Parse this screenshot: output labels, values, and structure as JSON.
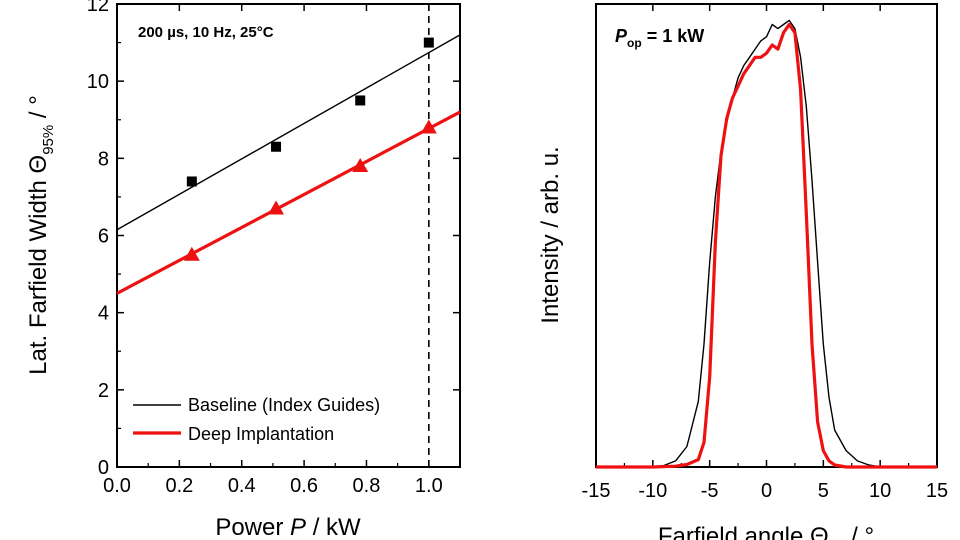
{
  "chart_data": [
    {
      "type": "scatter",
      "annotation": "200 µs, 10 Hz, 25°C",
      "xlabel": {
        "prefix": "Power ",
        "italic": "P",
        "suffix": " / kW"
      },
      "ylabel": {
        "prefix": "Lat. Farfield Width Θ",
        "sub": "95%",
        "suffix": " / °"
      },
      "xlim": [
        0,
        1.1
      ],
      "ylim": [
        0,
        12
      ],
      "x_ticks": [
        0.0,
        0.2,
        0.4,
        0.6,
        0.8,
        1.0
      ],
      "x_tick_labels": [
        "0.0",
        "0.2",
        "0.4",
        "0.6",
        "0.8",
        "1.0"
      ],
      "y_ticks": [
        0,
        2,
        4,
        6,
        8,
        10,
        12
      ],
      "y_tick_labels": [
        "0",
        "2",
        "4",
        "6",
        "8",
        "10",
        "12"
      ],
      "reference_line_x": 1.0,
      "series": [
        {
          "name": "Baseline (Index Guides)",
          "color": "#000000",
          "marker": "square",
          "x": [
            0.24,
            0.51,
            0.78,
            1.0
          ],
          "y": [
            7.4,
            8.3,
            9.5,
            11.0
          ],
          "fit": {
            "x": [
              0.0,
              1.1
            ],
            "y": [
              6.15,
              11.2
            ]
          }
        },
        {
          "name": "Deep Implantation",
          "color": "#ee1111",
          "marker": "triangle",
          "x": [
            0.24,
            0.51,
            0.78,
            1.0
          ],
          "y": [
            5.5,
            6.7,
            7.8,
            8.8
          ],
          "fit": {
            "x": [
              0.0,
              1.1
            ],
            "y": [
              4.5,
              9.2
            ]
          }
        }
      ]
    },
    {
      "type": "line",
      "annotation": {
        "italic": "P",
        "sub": "op",
        "suffix": " = 1 kW"
      },
      "xlabel": {
        "prefix": "Farfield angle Θ",
        "sub": "lat",
        "suffix": " / °"
      },
      "ylabel": "Intensity / arb. u.",
      "xlim": [
        -15,
        15
      ],
      "ylim": [
        0,
        1.13
      ],
      "x_ticks": [
        -15,
        -10,
        -5,
        0,
        5,
        10,
        15
      ],
      "x_tick_labels": [
        "-15",
        "-10",
        "-5",
        "0",
        "5",
        "10",
        "15"
      ],
      "series": [
        {
          "name": "Baseline (Index Guides)",
          "color": "#000000",
          "points": [
            [
              -15,
              0.0
            ],
            [
              -10,
              0.0
            ],
            [
              -9,
              0.004
            ],
            [
              -8,
              0.015
            ],
            [
              -7,
              0.05
            ],
            [
              -6,
              0.16
            ],
            [
              -5.5,
              0.3
            ],
            [
              -5,
              0.5
            ],
            [
              -4.5,
              0.66
            ],
            [
              -4,
              0.77
            ],
            [
              -3.5,
              0.84
            ],
            [
              -3,
              0.9
            ],
            [
              -2.5,
              0.95
            ],
            [
              -2,
              0.98
            ],
            [
              -1.5,
              1.0
            ],
            [
              -1,
              1.02
            ],
            [
              -0.5,
              1.04
            ],
            [
              0,
              1.05
            ],
            [
              0.5,
              1.08
            ],
            [
              1,
              1.07
            ],
            [
              1.5,
              1.08
            ],
            [
              2,
              1.09
            ],
            [
              2.5,
              1.07
            ],
            [
              3,
              1.0
            ],
            [
              3.5,
              0.88
            ],
            [
              4,
              0.7
            ],
            [
              4.5,
              0.5
            ],
            [
              5,
              0.3
            ],
            [
              5.5,
              0.17
            ],
            [
              6,
              0.09
            ],
            [
              7,
              0.04
            ],
            [
              8,
              0.015
            ],
            [
              9,
              0.005
            ],
            [
              10,
              0.0
            ],
            [
              15,
              0.0
            ]
          ]
        },
        {
          "name": "Deep Implantation",
          "color": "#ee1111",
          "points": [
            [
              -15,
              0.0
            ],
            [
              -10,
              0.0
            ],
            [
              -8,
              0.002
            ],
            [
              -7,
              0.006
            ],
            [
              -6,
              0.018
            ],
            [
              -5.5,
              0.06
            ],
            [
              -5,
              0.22
            ],
            [
              -4.5,
              0.55
            ],
            [
              -4,
              0.76
            ],
            [
              -3.5,
              0.85
            ],
            [
              -3,
              0.9
            ],
            [
              -2.5,
              0.93
            ],
            [
              -2,
              0.96
            ],
            [
              -1.5,
              0.98
            ],
            [
              -1,
              1.0
            ],
            [
              -0.5,
              1.0
            ],
            [
              0,
              1.01
            ],
            [
              0.5,
              1.03
            ],
            [
              1,
              1.02
            ],
            [
              1.5,
              1.06
            ],
            [
              2,
              1.08
            ],
            [
              2.5,
              1.06
            ],
            [
              3,
              0.92
            ],
            [
              3.5,
              0.62
            ],
            [
              4,
              0.3
            ],
            [
              4.5,
              0.11
            ],
            [
              5,
              0.04
            ],
            [
              5.5,
              0.015
            ],
            [
              6,
              0.005
            ],
            [
              7,
              0.0
            ],
            [
              15,
              0.0
            ]
          ]
        }
      ]
    }
  ]
}
